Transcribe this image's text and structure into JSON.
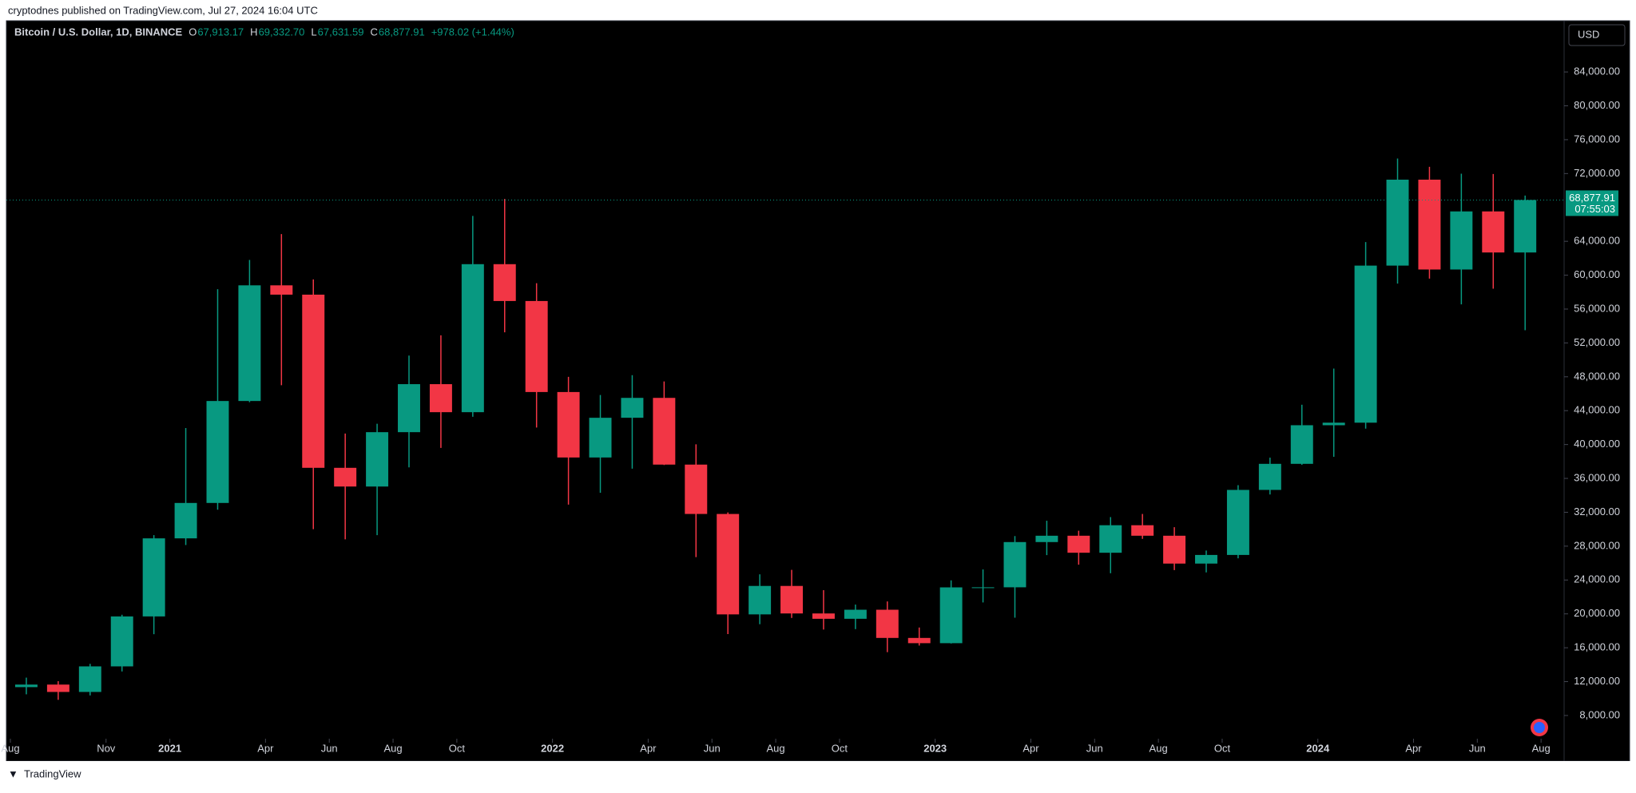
{
  "banner": "cryptodnes published on TradingView.com, Jul 27, 2024 16:04 UTC",
  "footer": "TradingView",
  "currency_button": "USD",
  "chart_data": {
    "type": "candlestick",
    "title": "Bitcoin / U.S. Dollar, 1D, BINANCE",
    "ohlc_header": [
      {
        "key": "O",
        "value": "67,913.17"
      },
      {
        "key": "H",
        "value": "69,332.70"
      },
      {
        "key": "L",
        "value": "67,631.59"
      },
      {
        "key": "C",
        "value": "68,877.91"
      }
    ],
    "change": "+978.02 (+1.44%)",
    "last_price": {
      "value": 68877.91,
      "label": "68,877.91"
    },
    "countdown": "07:55:03",
    "up_color": "#089981",
    "down_color": "#f23645",
    "categories": [
      "2020-08",
      "2020-09",
      "2020-10",
      "2020-11",
      "2020-12",
      "2021-01",
      "2021-02",
      "2021-03",
      "2021-04",
      "2021-05",
      "2021-06",
      "2021-07",
      "2021-08",
      "2021-09",
      "2021-10",
      "2021-11",
      "2021-12",
      "2022-01",
      "2022-02",
      "2022-03",
      "2022-04",
      "2022-05",
      "2022-06",
      "2022-07",
      "2022-08",
      "2022-09",
      "2022-10",
      "2022-11",
      "2022-12",
      "2023-01",
      "2023-02",
      "2023-03",
      "2023-04",
      "2023-05",
      "2023-06",
      "2023-07",
      "2023-08",
      "2023-09",
      "2023-10",
      "2023-11",
      "2023-12",
      "2024-01",
      "2024-02",
      "2024-03",
      "2024-04",
      "2024-05",
      "2024-06",
      "2024-07"
    ],
    "open": [
      11350,
      11650,
      10780,
      13800,
      19700,
      28920,
      33100,
      45140,
      58800,
      57700,
      37250,
      35040,
      41460,
      47130,
      43820,
      61300,
      56950,
      46200,
      38470,
      43160,
      45510,
      37630,
      31800,
      19940,
      23300,
      20050,
      19420,
      20490,
      17160,
      16540,
      23130,
      23140,
      28480,
      29230,
      27220,
      30470,
      29230,
      25940,
      26960,
      34640,
      37720,
      42280,
      42580,
      61130,
      71280,
      60670,
      67530,
      62680
    ],
    "high": [
      12470,
      12050,
      14100,
      19900,
      29300,
      41950,
      58350,
      61800,
      64850,
      59500,
      41300,
      42450,
      50500,
      52900,
      67000,
      69000,
      59050,
      47990,
      45850,
      48190,
      47450,
      40020,
      31980,
      24670,
      25200,
      22800,
      21100,
      21470,
      18390,
      23960,
      25250,
      29190,
      31000,
      29820,
      31430,
      31800,
      30240,
      27480,
      35200,
      38450,
      44700,
      48970,
      63910,
      73780,
      72800,
      71980,
      71950,
      69400
    ],
    "low": [
      10500,
      9850,
      10370,
      13200,
      17600,
      28130,
      32300,
      45000,
      47000,
      30000,
      28800,
      29300,
      37300,
      39600,
      43280,
      53250,
      42000,
      32900,
      34300,
      37150,
      37580,
      26700,
      17620,
      18780,
      19520,
      18150,
      18200,
      15480,
      16260,
      16500,
      21350,
      19550,
      26940,
      25810,
      24800,
      28860,
      25170,
      24900,
      26560,
      34100,
      37600,
      38550,
      41880,
      59000,
      59600,
      56550,
      58400,
      53500
    ],
    "close": [
      11650,
      10780,
      13800,
      19700,
      28920,
      33100,
      45140,
      58800,
      57700,
      37250,
      35040,
      41460,
      47130,
      43820,
      61300,
      56950,
      46200,
      38470,
      43160,
      45510,
      37630,
      31800,
      19940,
      23300,
      20050,
      19420,
      20490,
      17160,
      16540,
      23130,
      23140,
      28480,
      29230,
      27220,
      30470,
      29230,
      25940,
      26960,
      34640,
      37720,
      42280,
      42580,
      61130,
      71280,
      60670,
      67530,
      62680,
      68877.91
    ],
    "ylim": [
      5260,
      90045
    ],
    "yticks": [
      {
        "value": 8000,
        "label": "8,000.00"
      },
      {
        "value": 12000,
        "label": "12,000.00"
      },
      {
        "value": 16000,
        "label": "16,000.00"
      },
      {
        "value": 20000,
        "label": "20,000.00"
      },
      {
        "value": 24000,
        "label": "24,000.00"
      },
      {
        "value": 28000,
        "label": "28,000.00"
      },
      {
        "value": 32000,
        "label": "32,000.00"
      },
      {
        "value": 36000,
        "label": "36,000.00"
      },
      {
        "value": 40000,
        "label": "40,000.00"
      },
      {
        "value": 44000,
        "label": "44,000.00"
      },
      {
        "value": 48000,
        "label": "48,000.00"
      },
      {
        "value": 52000,
        "label": "52,000.00"
      },
      {
        "value": 56000,
        "label": "56,000.00"
      },
      {
        "value": 60000,
        "label": "60,000.00"
      },
      {
        "value": 64000,
        "label": "64,000.00"
      },
      {
        "value": 72000,
        "label": "72,000.00"
      },
      {
        "value": 76000,
        "label": "76,000.00"
      },
      {
        "value": 80000,
        "label": "80,000.00"
      },
      {
        "value": 84000,
        "label": "84,000.00"
      }
    ],
    "xticks": [
      {
        "value": "2020-08",
        "label": "Aug"
      },
      {
        "value": "2020-11",
        "label": "Nov"
      },
      {
        "value": "2021-01",
        "label": "2021"
      },
      {
        "value": "2021-04",
        "label": "Apr"
      },
      {
        "value": "2021-06",
        "label": "Jun"
      },
      {
        "value": "2021-08",
        "label": "Aug"
      },
      {
        "value": "2021-10",
        "label": "Oct"
      },
      {
        "value": "2022-01",
        "label": "2022"
      },
      {
        "value": "2022-04",
        "label": "Apr"
      },
      {
        "value": "2022-06",
        "label": "Jun"
      },
      {
        "value": "2022-08",
        "label": "Aug"
      },
      {
        "value": "2022-10",
        "label": "Oct"
      },
      {
        "value": "2023-01",
        "label": "2023"
      },
      {
        "value": "2023-04",
        "label": "Apr"
      },
      {
        "value": "2023-06",
        "label": "Jun"
      },
      {
        "value": "2023-08",
        "label": "Aug"
      },
      {
        "value": "2023-10",
        "label": "Oct"
      },
      {
        "value": "2024-01",
        "label": "2024"
      },
      {
        "value": "2024-04",
        "label": "Apr"
      },
      {
        "value": "2024-06",
        "label": "Jun"
      },
      {
        "value": "2024-08",
        "label": "Aug"
      }
    ],
    "grid": false
  }
}
